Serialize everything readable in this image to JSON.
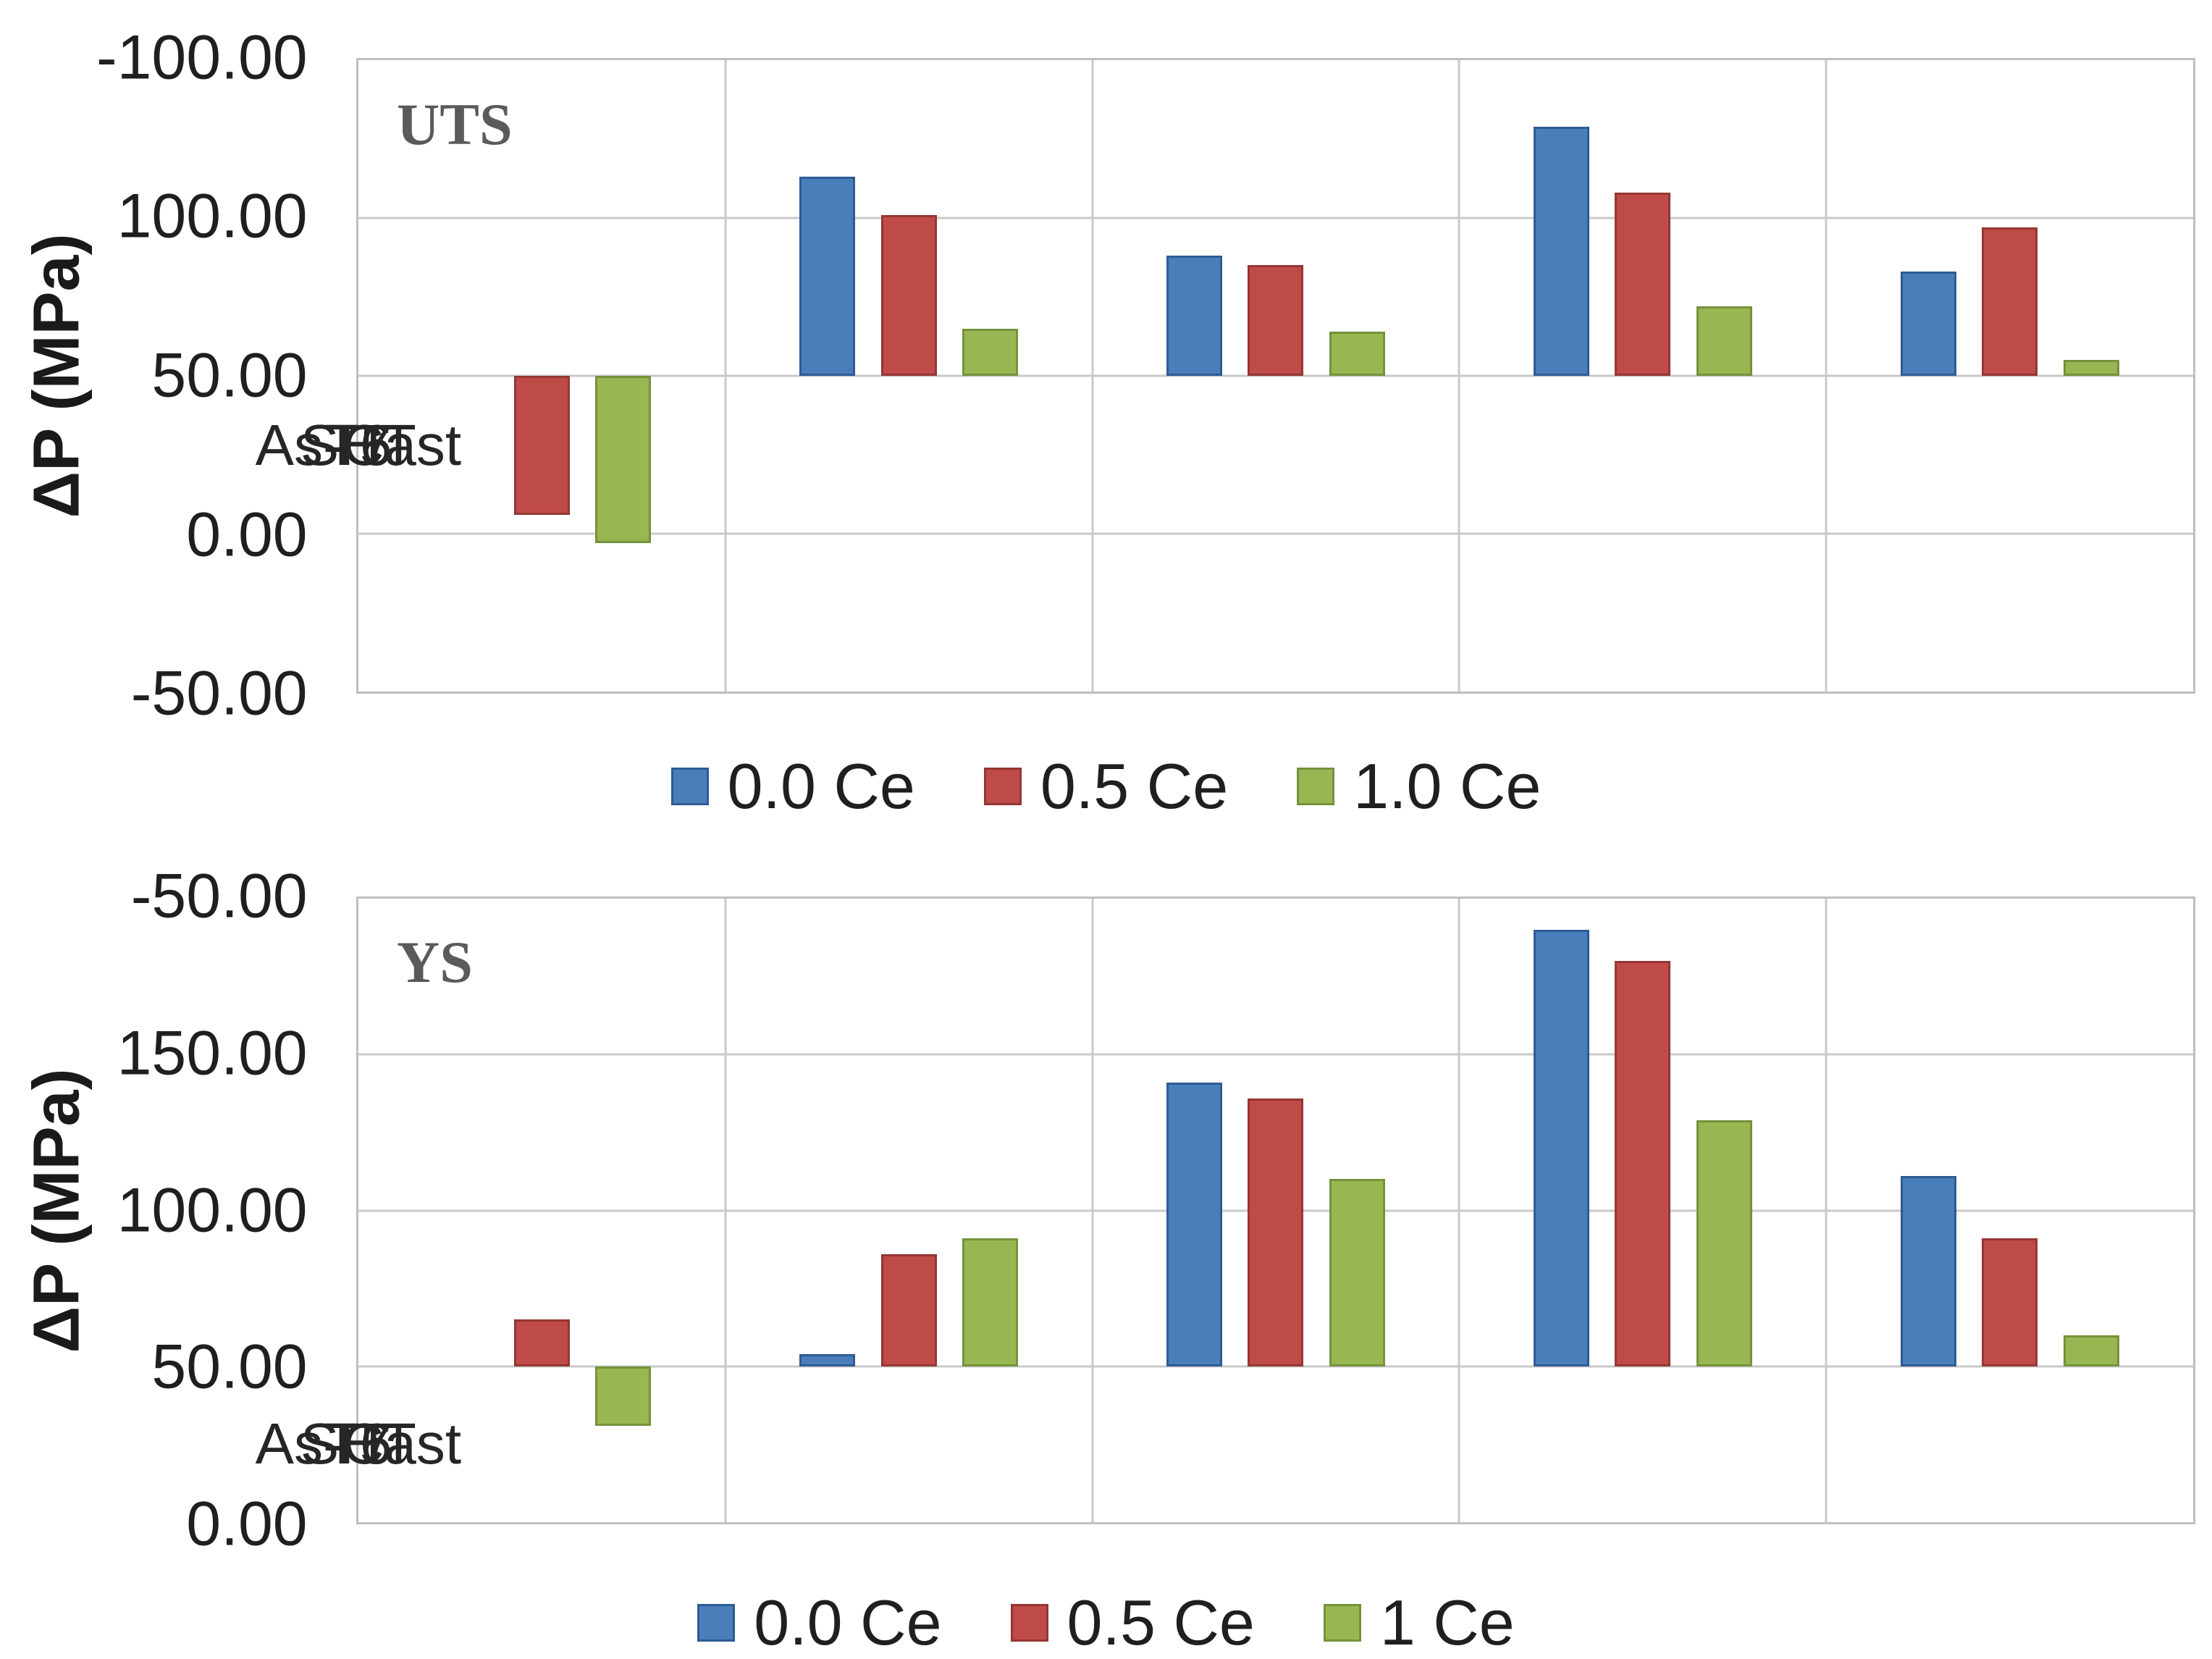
{
  "accent_colors": {
    "series_blue": "#4a7ebb",
    "series_red": "#bf4b48",
    "series_green": "#98b752",
    "gridline": "#c9c9c9",
    "title_gray": "#5a5a5a"
  },
  "chart_data": [
    {
      "type": "bar",
      "title": "UTS",
      "xlabel": "",
      "ylabel": "ΔP (MPa)",
      "categories": [
        "As-Cast",
        "SHT",
        "T5",
        "T6",
        "T7"
      ],
      "series": [
        {
          "name": "0.0 Ce",
          "color": "#4a7ebb",
          "border": "#2e5b94",
          "values": [
            0,
            63,
            38,
            79,
            33
          ]
        },
        {
          "name": "0.5 Ce",
          "color": "#bf4b48",
          "border": "#943634",
          "values": [
            -44,
            51,
            35,
            58,
            47
          ]
        },
        {
          "name": "1.0 Ce",
          "color": "#98b752",
          "border": "#75923c",
          "values": [
            -53,
            15,
            14,
            22,
            5
          ]
        }
      ],
      "ylim": [
        -100,
        100
      ],
      "yticks": [
        "100.00",
        "50.00",
        "0.00",
        "-50.00",
        "-100.00"
      ],
      "grid": true,
      "legend_position": "bottom"
    },
    {
      "type": "bar",
      "title": "YS",
      "xlabel": "",
      "ylabel": "ΔP (MPa)",
      "categories": [
        "As-Cast",
        "SHT",
        "T5",
        "T6",
        "T7"
      ],
      "series": [
        {
          "name": "0.0 Ce",
          "color": "#4a7ebb",
          "border": "#2e5b94",
          "values": [
            0,
            4,
            91,
            140,
            61
          ]
        },
        {
          "name": "0.5 Ce",
          "color": "#bf4b48",
          "border": "#943634",
          "values": [
            15,
            36,
            86,
            130,
            41
          ]
        },
        {
          "name": "1 Ce",
          "color": "#98b752",
          "border": "#75923c",
          "values": [
            -19,
            41,
            60,
            79,
            10
          ]
        }
      ],
      "ylim": [
        -50,
        150
      ],
      "yticks": [
        "150.00",
        "100.00",
        "50.00",
        "0.00",
        "-50.00"
      ],
      "grid": true,
      "legend_position": "bottom"
    }
  ]
}
